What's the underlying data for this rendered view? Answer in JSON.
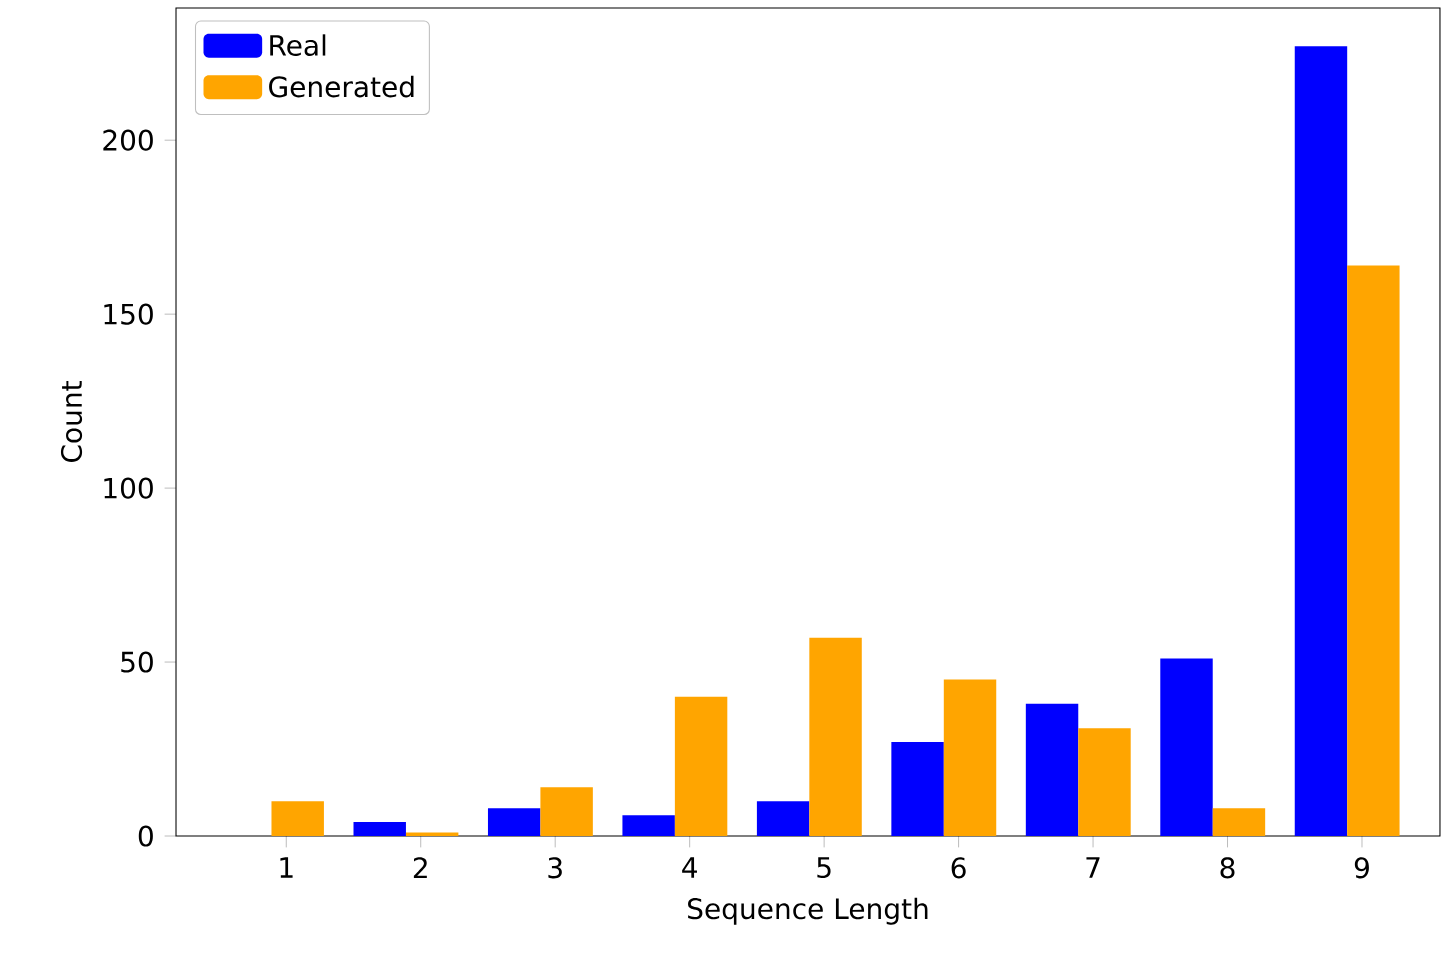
{
  "chart_data": {
    "type": "bar",
    "xlabel": "Sequence Length",
    "ylabel": "Count",
    "categories": [
      "1",
      "2",
      "3",
      "4",
      "5",
      "6",
      "7",
      "8",
      "9"
    ],
    "series": [
      {
        "name": "Real",
        "color": "#0000ff",
        "values": [
          0,
          4,
          8,
          6,
          10,
          27,
          38,
          51,
          227
        ]
      },
      {
        "name": "Generated",
        "color": "#ffa500",
        "values": [
          10,
          1,
          14,
          40,
          57,
          45,
          31,
          8,
          164
        ]
      }
    ],
    "ylim": [
      0,
      238
    ],
    "yticks": [
      0,
      50,
      100,
      150,
      200
    ],
    "legend": "top left",
    "grid": false
  }
}
